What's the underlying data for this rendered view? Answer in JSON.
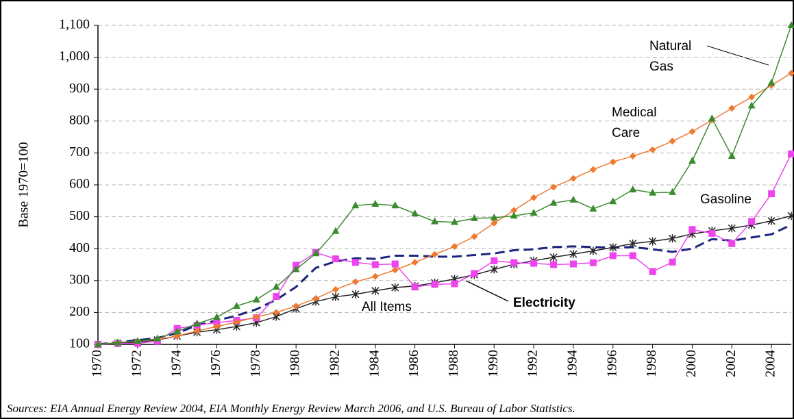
{
  "chart_data": {
    "type": "line",
    "ylabel": "Base 1970=100",
    "source": "Sources:  EIA Annual Energy Review 2004, EIA Monthly Energy Review March 2006, and U.S. Bureau of Labor Statistics.",
    "x": [
      1970,
      1971,
      1972,
      1973,
      1974,
      1975,
      1976,
      1977,
      1978,
      1979,
      1980,
      1981,
      1982,
      1983,
      1984,
      1985,
      1986,
      1987,
      1988,
      1989,
      1990,
      1991,
      1992,
      1993,
      1994,
      1995,
      1996,
      1997,
      1998,
      1999,
      2000,
      2001,
      2002,
      2003,
      2004,
      2005
    ],
    "xlim": [
      1970,
      2005
    ],
    "xticks": [
      1970,
      1972,
      1974,
      1976,
      1978,
      1980,
      1982,
      1984,
      1986,
      1988,
      1990,
      1992,
      1994,
      1996,
      1998,
      2000,
      2002,
      2004
    ],
    "ylim": [
      100,
      1100
    ],
    "yticks": [
      100,
      200,
      300,
      400,
      500,
      600,
      700,
      800,
      900,
      {
        "value": 1000,
        "label": "1,000"
      },
      {
        "value": 1100,
        "label": "1,100"
      }
    ],
    "grid": true,
    "series": [
      {
        "name": "Natural Gas",
        "color": "#3a8a2e",
        "marker": "triangle",
        "values": [
          100,
          105,
          110,
          118,
          140,
          165,
          185,
          220,
          240,
          280,
          335,
          385,
          455,
          535,
          540,
          535,
          510,
          485,
          483,
          495,
          497,
          503,
          512,
          543,
          553,
          525,
          548,
          585,
          575,
          577,
          675,
          808,
          690,
          848,
          920,
          1100
        ]
      },
      {
        "name": "Medical Care",
        "color": "#ee7a30",
        "marker": "diamond",
        "values": [
          100,
          106,
          110,
          116,
          126,
          142,
          156,
          170,
          186,
          200,
          220,
          244,
          272,
          296,
          313,
          333,
          357,
          382,
          407,
          438,
          480,
          520,
          560,
          593,
          620,
          648,
          672,
          690,
          710,
          737,
          767,
          803,
          840,
          875,
          912,
          950
        ]
      },
      {
        "name": "Gasoline",
        "color": "#ee44ee",
        "marker": "square",
        "values": [
          100,
          103,
          103,
          110,
          150,
          160,
          168,
          175,
          183,
          250,
          348,
          388,
          368,
          357,
          350,
          352,
          280,
          288,
          290,
          322,
          362,
          356,
          354,
          350,
          352,
          356,
          378,
          378,
          328,
          358,
          460,
          448,
          416,
          485,
          572,
          697
        ]
      },
      {
        "name": "All Items",
        "color": "#222222",
        "marker": "asterisk",
        "values": [
          100,
          104,
          107,
          114,
          126,
          138,
          146,
          156,
          168,
          187,
          212,
          234,
          249,
          257,
          268,
          278,
          283,
          293,
          305,
          318,
          335,
          351,
          362,
          373,
          383,
          393,
          404,
          416,
          423,
          432,
          446,
          456,
          464,
          474,
          487,
          503
        ]
      },
      {
        "name": "Electricity",
        "color": "#1a237e",
        "marker": "none",
        "dash": true,
        "values": [
          100,
          107,
          113,
          120,
          135,
          160,
          175,
          190,
          210,
          240,
          280,
          340,
          360,
          370,
          368,
          378,
          378,
          375,
          375,
          380,
          385,
          395,
          398,
          405,
          407,
          405,
          403,
          405,
          398,
          390,
          400,
          430,
          425,
          435,
          445,
          475
        ]
      }
    ],
    "annotations": [
      {
        "lines": [
          "Natural",
          "Gas"
        ]
      },
      {
        "lines": [
          "Medical",
          "Care"
        ]
      },
      {
        "lines": [
          "Gasoline"
        ]
      },
      {
        "lines": [
          "All Items"
        ]
      },
      {
        "lines": [
          "Electricity"
        ]
      }
    ]
  }
}
